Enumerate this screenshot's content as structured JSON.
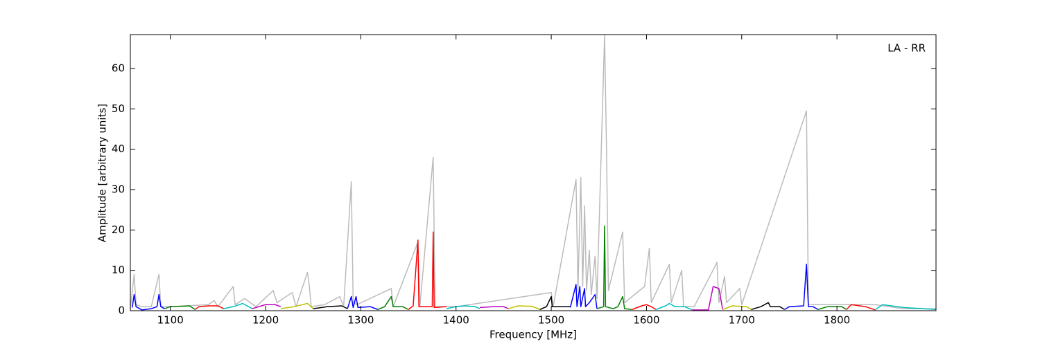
{
  "chart_data": {
    "type": "line",
    "annotation": "LA - RR",
    "xlabel": "Frequency [MHz]",
    "ylabel": "Amplitude [arbitrary units]",
    "xlim": [
      1058,
      1904
    ],
    "ylim": [
      0,
      68.4
    ],
    "xticks": [
      1100,
      1200,
      1300,
      1400,
      1500,
      1600,
      1700,
      1800
    ],
    "yticks": [
      0,
      10,
      20,
      30,
      40,
      50,
      60
    ],
    "series": [
      {
        "color": "#bbbbbb",
        "x": [
          1058,
          1062,
          1064,
          1070,
          1080,
          1088,
          1090,
          1100,
          1140,
          1146,
          1150,
          1166,
          1168,
          1178,
          1190,
          1208,
          1212,
          1228,
          1232,
          1244,
          1246,
          1248,
          1262,
          1278,
          1282,
          1290,
          1292,
          1296,
          1332,
          1334,
          1360,
          1362,
          1376,
          1378,
          1400,
          1500,
          1502,
          1526,
          1528,
          1530,
          1531,
          1533,
          1535,
          1537,
          1540,
          1542,
          1546,
          1548,
          1556,
          1558,
          1560,
          1575,
          1577,
          1590,
          1598,
          1603,
          1605,
          1624,
          1626,
          1637,
          1639,
          1650,
          1672,
          1674,
          1676,
          1682,
          1684,
          1698,
          1700,
          1768,
          1770,
          1840,
          1870,
          1904
        ],
        "values": [
          0.5,
          9,
          1.5,
          1,
          1,
          9,
          1,
          1,
          1.5,
          2.5,
          1,
          6,
          1.5,
          3,
          1,
          5,
          2,
          4.5,
          1,
          9.5,
          6,
          1,
          1.5,
          3.5,
          1,
          32,
          2,
          1.5,
          5.5,
          1,
          17,
          1,
          38,
          1,
          1,
          4.5,
          1,
          32.5,
          5,
          23,
          33,
          6,
          26,
          5,
          15,
          4,
          13.5,
          3,
          68.4,
          40,
          5,
          19.5,
          2,
          4.5,
          6,
          15.5,
          2,
          11.5,
          2,
          10,
          1,
          1,
          11,
          12,
          2,
          8.5,
          2,
          5.5,
          1.5,
          49.5,
          1.5,
          1.5,
          0.5,
          0.5
        ]
      },
      {
        "color": "#0000ff",
        "x": [
          1060,
          1062,
          1064,
          1070,
          1080,
          1086,
          1088,
          1090,
          1094
        ],
        "values": [
          0.8,
          4,
          1,
          0.2,
          0.5,
          1,
          4,
          1,
          0.5
        ]
      },
      {
        "color": "#008000",
        "x": [
          1094,
          1100,
          1120,
          1126
        ],
        "values": [
          0.5,
          1,
          1.2,
          0.3
        ]
      },
      {
        "color": "#ff0000",
        "x": [
          1126,
          1130,
          1140,
          1150,
          1156
        ],
        "values": [
          0.3,
          1,
          1.2,
          1.2,
          0.5
        ]
      },
      {
        "color": "#00bfbf",
        "x": [
          1156,
          1166,
          1176,
          1186
        ],
        "values": [
          0.5,
          1,
          1.8,
          0.5
        ]
      },
      {
        "color": "#bf00bf",
        "x": [
          1186,
          1200,
          1210,
          1216
        ],
        "values": [
          0.5,
          1.5,
          1.5,
          1
        ]
      },
      {
        "color": "#bfbf00",
        "x": [
          1216,
          1230,
          1244,
          1250
        ],
        "values": [
          0.5,
          1,
          1.8,
          0.5
        ]
      },
      {
        "color": "#000000",
        "x": [
          1250,
          1265,
          1280,
          1286
        ],
        "values": [
          0.5,
          1,
          1.2,
          0.5
        ]
      },
      {
        "color": "#0000ff",
        "x": [
          1286,
          1290,
          1292,
          1295,
          1297,
          1310,
          1318
        ],
        "values": [
          0.5,
          3.5,
          0.8,
          3.5,
          0.8,
          1,
          0.3
        ]
      },
      {
        "color": "#008000",
        "x": [
          1318,
          1325,
          1332,
          1334,
          1344,
          1350
        ],
        "values": [
          0.3,
          1,
          3.5,
          1,
          1,
          0.3
        ]
      },
      {
        "color": "#ff0000",
        "x": [
          1350,
          1355,
          1360,
          1361,
          1375,
          1376,
          1377,
          1390
        ],
        "values": [
          0.3,
          1.2,
          17.5,
          1,
          1,
          19.5,
          0.8,
          1
        ]
      },
      {
        "color": "#00bfbf",
        "x": [
          1390,
          1400,
          1410,
          1420,
          1425
        ],
        "values": [
          0.5,
          1,
          1.2,
          1,
          0.5
        ]
      },
      {
        "color": "#bf00bf",
        "x": [
          1425,
          1440,
          1450,
          1455
        ],
        "values": [
          0.8,
          1,
          1,
          0.5
        ]
      },
      {
        "color": "#bfbf00",
        "x": [
          1455,
          1465,
          1480,
          1488
        ],
        "values": [
          0.5,
          1.2,
          1.1,
          0.3
        ]
      },
      {
        "color": "#000000",
        "x": [
          1488,
          1495,
          1500,
          1501,
          1520
        ],
        "values": [
          0.3,
          1,
          3.5,
          1,
          1
        ]
      },
      {
        "color": "#0000ff",
        "x": [
          1520,
          1526,
          1527,
          1530,
          1531,
          1535,
          1536,
          1540,
          1546,
          1548
        ],
        "values": [
          0.8,
          6.5,
          1,
          6,
          1,
          5.5,
          1,
          2,
          4,
          0.5
        ]
      },
      {
        "color": "#008000",
        "x": [
          1548,
          1555,
          1556,
          1557,
          1565,
          1570,
          1575,
          1577,
          1585
        ],
        "values": [
          0.5,
          1,
          21,
          1,
          0.5,
          1,
          3.5,
          0.5,
          0.3
        ]
      },
      {
        "color": "#ff0000",
        "x": [
          1585,
          1595,
          1600,
          1605,
          1610
        ],
        "values": [
          0.3,
          1.2,
          1.5,
          1,
          0.3
        ]
      },
      {
        "color": "#00bfbf",
        "x": [
          1610,
          1620,
          1624,
          1630,
          1640,
          1648
        ],
        "values": [
          0.3,
          1.2,
          1.8,
          1,
          1,
          0.2
        ]
      },
      {
        "color": "#bf00bf",
        "x": [
          1648,
          1665,
          1670,
          1676,
          1680
        ],
        "values": [
          0.2,
          0.2,
          6,
          5.5,
          0.3
        ]
      },
      {
        "color": "#bfbf00",
        "x": [
          1680,
          1690,
          1705,
          1710
        ],
        "values": [
          0.3,
          1.2,
          1,
          0.3
        ]
      },
      {
        "color": "#000000",
        "x": [
          1710,
          1720,
          1728,
          1730,
          1740,
          1745
        ],
        "values": [
          0.3,
          1,
          2,
          1,
          1,
          0.3
        ]
      },
      {
        "color": "#0000ff",
        "x": [
          1745,
          1750,
          1765,
          1768,
          1770,
          1775,
          1780
        ],
        "values": [
          0.3,
          1,
          1.2,
          11.5,
          1,
          1,
          0.3
        ]
      },
      {
        "color": "#008000",
        "x": [
          1780,
          1790,
          1805,
          1810
        ],
        "values": [
          0.3,
          1,
          1,
          0.3
        ]
      },
      {
        "color": "#ff0000",
        "x": [
          1810,
          1815,
          1830,
          1840
        ],
        "values": [
          0.3,
          1.5,
          1,
          0.2
        ]
      },
      {
        "color": "#00bfbf",
        "x": [
          1840,
          1848,
          1870,
          1904
        ],
        "values": [
          0.2,
          1.5,
          0.8,
          0.3
        ]
      }
    ]
  }
}
